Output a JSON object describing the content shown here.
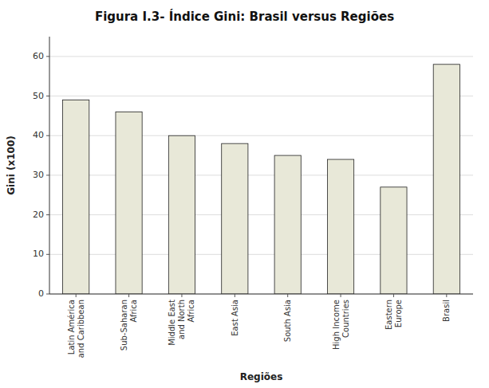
{
  "chart_data": {
    "type": "bar",
    "title": "Figura I.3- Índice Gini: Brasil versus Regiões",
    "categories": [
      "Latin América\nand Caribbean",
      "Sub-Saharan\nAfrica",
      "Middle East\nand North\nAfrica",
      "East Asia",
      "South Asia",
      "High Income\nCountries",
      "Eastern\nEurope",
      "Brasil"
    ],
    "values": [
      49,
      46,
      40,
      38,
      35,
      34,
      27,
      58
    ],
    "x_label": "Regiões",
    "y_label": "Gini (x100)",
    "ylim": [
      0,
      65
    ],
    "yticks": [
      0,
      10,
      20,
      30,
      40,
      50,
      60
    ],
    "color": "#e8e8d8",
    "grid": true
  }
}
